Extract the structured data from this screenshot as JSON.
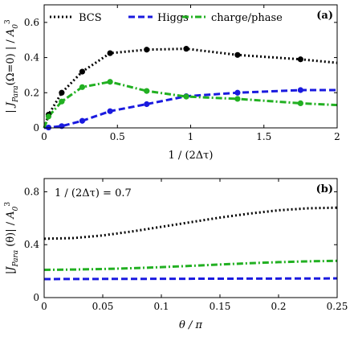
{
  "chart_data": [
    {
      "type": "line",
      "panel_label": "(a)",
      "xlabel": "1 / (2Δτ)",
      "ylabel": "| J_Para(Ω=0) | / A_0^3",
      "xlim": [
        0,
        2
      ],
      "ylim": [
        0,
        0.7
      ],
      "xticks": [
        "0",
        "0.5",
        "1",
        "1.5",
        "2"
      ],
      "xtick_values": [
        0,
        0.5,
        1,
        1.5,
        2
      ],
      "yticks": [
        "0",
        "0.2",
        "0.4",
        "0.6"
      ],
      "ytick_values": [
        0,
        0.2,
        0.4,
        0.6
      ],
      "legend_position": "top",
      "series": [
        {
          "name": "BCS",
          "color": "#000000",
          "dash": "dotted",
          "x": [
            0,
            0.03,
            0.12,
            0.26,
            0.45,
            0.7,
            0.97,
            1.32,
            1.75,
            2.0
          ],
          "y": [
            0,
            0.075,
            0.2,
            0.32,
            0.425,
            0.445,
            0.45,
            0.415,
            0.39,
            0.37
          ],
          "marker_x": [
            0.03,
            0.12,
            0.26,
            0.45,
            0.7,
            0.97,
            1.32,
            1.75
          ],
          "marker_y": [
            0.075,
            0.2,
            0.32,
            0.425,
            0.445,
            0.45,
            0.415,
            0.39
          ]
        },
        {
          "name": "Higgs",
          "color": "#1a1adf",
          "dash": "dashed",
          "x": [
            0,
            0.03,
            0.12,
            0.26,
            0.45,
            0.7,
            0.97,
            1.32,
            1.75,
            2.0
          ],
          "y": [
            0,
            0.002,
            0.01,
            0.04,
            0.095,
            0.135,
            0.18,
            0.2,
            0.215,
            0.215
          ],
          "marker_x": [
            0.03,
            0.12,
            0.26,
            0.45,
            0.7,
            0.97,
            1.32,
            1.75
          ],
          "marker_y": [
            0.002,
            0.01,
            0.04,
            0.095,
            0.135,
            0.18,
            0.2,
            0.215
          ]
        },
        {
          "name": "charge/phase",
          "color": "#22b022",
          "dash": "dashdot",
          "x": [
            0,
            0.03,
            0.12,
            0.26,
            0.45,
            0.7,
            0.97,
            1.32,
            1.75,
            2.0
          ],
          "y": [
            0,
            0.065,
            0.15,
            0.232,
            0.262,
            0.21,
            0.178,
            0.165,
            0.14,
            0.13
          ],
          "marker_x": [
            0.03,
            0.12,
            0.26,
            0.45,
            0.7,
            0.97,
            1.32,
            1.75
          ],
          "marker_y": [
            0.065,
            0.15,
            0.232,
            0.262,
            0.21,
            0.178,
            0.165,
            0.14
          ]
        }
      ]
    },
    {
      "type": "line",
      "panel_label": "(b)",
      "annotation": "1 / (2Δτ) = 0.7",
      "xlabel": "θ / π",
      "ylabel": "|J_Para (θ)| / A_0^3",
      "xlim": [
        0,
        0.25
      ],
      "ylim": [
        0,
        0.9
      ],
      "xticks": [
        "0",
        "0.05",
        "0.1",
        "0.15",
        "0.2",
        "0.25"
      ],
      "xtick_values": [
        0,
        0.05,
        0.1,
        0.15,
        0.2,
        0.25
      ],
      "yticks": [
        "0",
        "0.4",
        "0.8"
      ],
      "ytick_values": [
        0,
        0.4,
        0.8
      ],
      "series": [
        {
          "name": "BCS",
          "color": "#000000",
          "dash": "dotted",
          "x": [
            0,
            0.025,
            0.05,
            0.075,
            0.1,
            0.125,
            0.15,
            0.175,
            0.2,
            0.225,
            0.25
          ],
          "y": [
            0.445,
            0.45,
            0.47,
            0.5,
            0.535,
            0.57,
            0.605,
            0.635,
            0.66,
            0.675,
            0.68
          ]
        },
        {
          "name": "charge/phase",
          "color": "#22b022",
          "dash": "dashdot",
          "x": [
            0,
            0.025,
            0.05,
            0.075,
            0.1,
            0.125,
            0.15,
            0.175,
            0.2,
            0.225,
            0.25
          ],
          "y": [
            0.21,
            0.212,
            0.216,
            0.222,
            0.23,
            0.24,
            0.25,
            0.26,
            0.268,
            0.274,
            0.278
          ]
        },
        {
          "name": "Higgs",
          "color": "#1a1adf",
          "dash": "dashed",
          "x": [
            0,
            0.05,
            0.1,
            0.15,
            0.2,
            0.25
          ],
          "y": [
            0.14,
            0.141,
            0.142,
            0.143,
            0.144,
            0.145
          ]
        }
      ]
    }
  ]
}
